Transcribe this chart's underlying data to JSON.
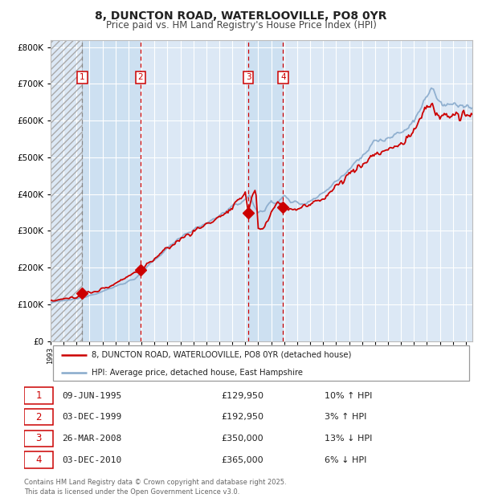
{
  "title_line1": "8, DUNCTON ROAD, WATERLOOVILLE, PO8 0YR",
  "title_line2": "Price paid vs. HM Land Registry's House Price Index (HPI)",
  "ylim": [
    0,
    820000
  ],
  "yticks": [
    0,
    100000,
    200000,
    300000,
    400000,
    500000,
    600000,
    700000,
    800000
  ],
  "ytick_labels": [
    "£0",
    "£100K",
    "£200K",
    "£300K",
    "£400K",
    "£500K",
    "£600K",
    "£700K",
    "£800K"
  ],
  "transactions": [
    {
      "num": 1,
      "date": "09-JUN-1995",
      "date_x": 1995.44,
      "price": 129950,
      "pct": "10%",
      "dir": "↑"
    },
    {
      "num": 2,
      "date": "03-DEC-1999",
      "date_x": 1999.92,
      "price": 192950,
      "pct": "3%",
      "dir": "↑"
    },
    {
      "num": 3,
      "date": "26-MAR-2008",
      "date_x": 2008.23,
      "price": 350000,
      "pct": "13%",
      "dir": "↓"
    },
    {
      "num": 4,
      "date": "03-DEC-2010",
      "date_x": 2010.92,
      "price": 365000,
      "pct": "6%",
      "dir": "↓"
    }
  ],
  "legend_line1": "8, DUNCTON ROAD, WATERLOOVILLE, PO8 0YR (detached house)",
  "legend_line2": "HPI: Average price, detached house, East Hampshire",
  "footnote": "Contains HM Land Registry data © Crown copyright and database right 2025.\nThis data is licensed under the Open Government Licence v3.0.",
  "line_color": "#cc0000",
  "hpi_color": "#88aacc",
  "background_color": "#dce8f5",
  "vline_color_red": "#cc0000",
  "vline_color_gray": "#888888",
  "grid_color": "#ffffff",
  "xlim_start": 1993.0,
  "xlim_end": 2025.5
}
